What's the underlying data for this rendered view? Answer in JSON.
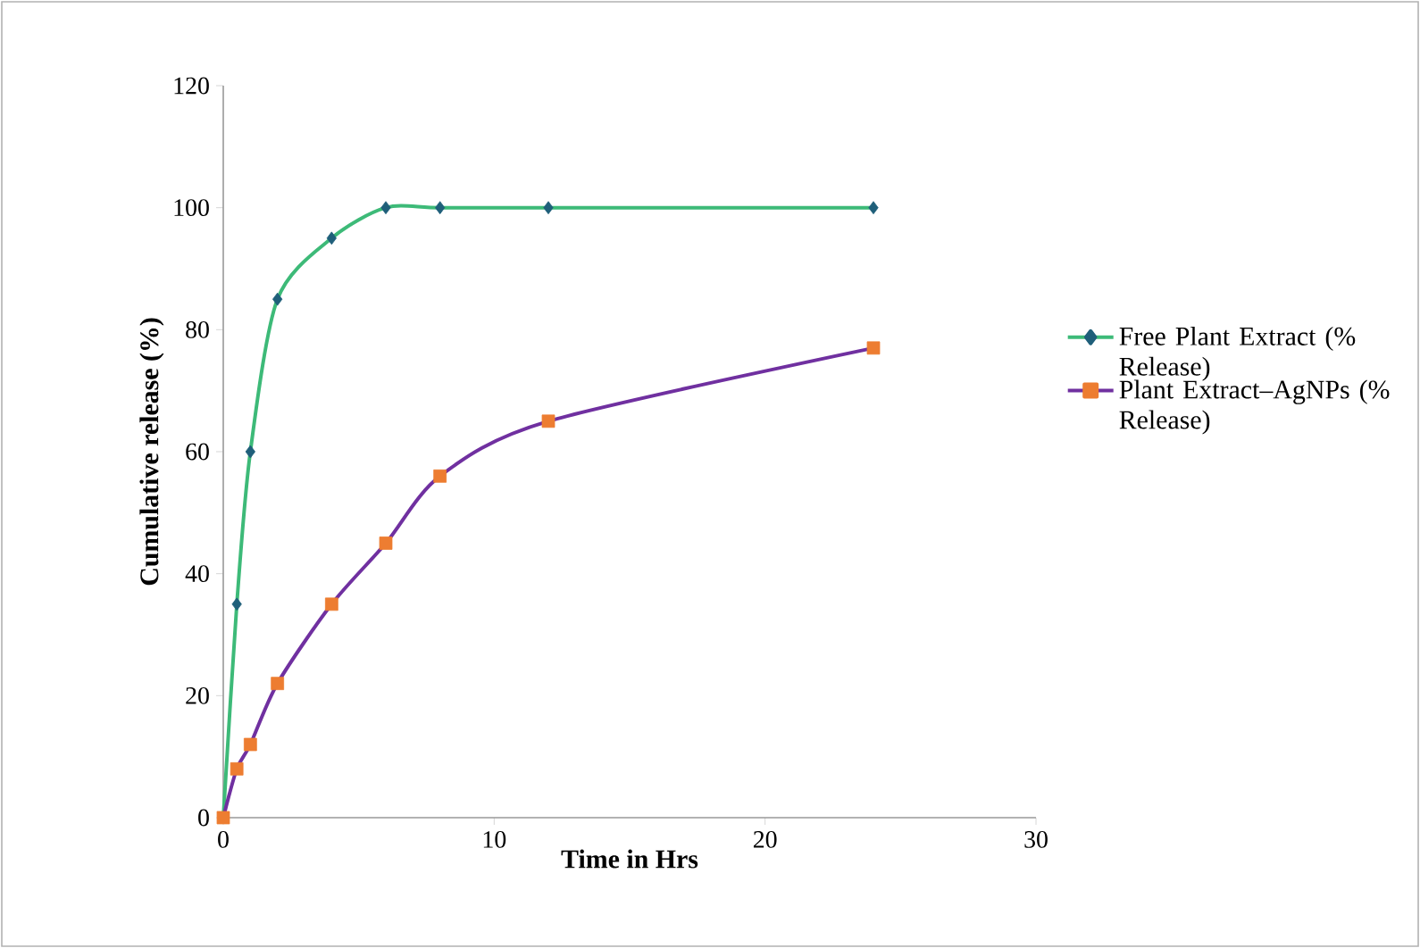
{
  "chart_data": {
    "type": "line",
    "xlabel": "Time in Hrs",
    "ylabel": "Cumulative release (%)",
    "xlim": [
      0,
      30
    ],
    "xticks": [
      0,
      10,
      20,
      30
    ],
    "ylim": [
      0,
      120
    ],
    "yticks": [
      0,
      20,
      40,
      60,
      80,
      100,
      120
    ],
    "legend": "right",
    "grid": false,
    "series": [
      {
        "name": "Free Plant Extract (% Release)",
        "color": "#3dba78",
        "marker": "diamond",
        "colors": [
          "#1f5f7a",
          "#1f5f7a",
          "#1f5f7a",
          "#1f5f7a",
          "#1f5f7a",
          "#1f5f7a",
          "#1f5f7a",
          "#1f5f7a",
          "#1f5f7a"
        ],
        "x": [
          0,
          0.5,
          1,
          2,
          4,
          6,
          8,
          12,
          24
        ],
        "values": [
          0,
          35,
          60,
          85,
          95,
          100,
          100,
          100,
          100
        ]
      },
      {
        "name": "Plant Extract–AgNPs (% Release)",
        "color": "#7030a0",
        "marker": "square",
        "colors": [
          "#ed7d31",
          "#ed7d31",
          "#ed7d31",
          "#ed7d31",
          "#ed7d31",
          "#ed7d31",
          "#ed7d31",
          "#ed7d31",
          "#ed7d31"
        ],
        "x": [
          0,
          0.5,
          1,
          2,
          4,
          6,
          8,
          12,
          24
        ],
        "values": [
          0,
          8,
          12,
          22,
          35,
          45,
          56,
          65,
          77
        ]
      }
    ]
  }
}
